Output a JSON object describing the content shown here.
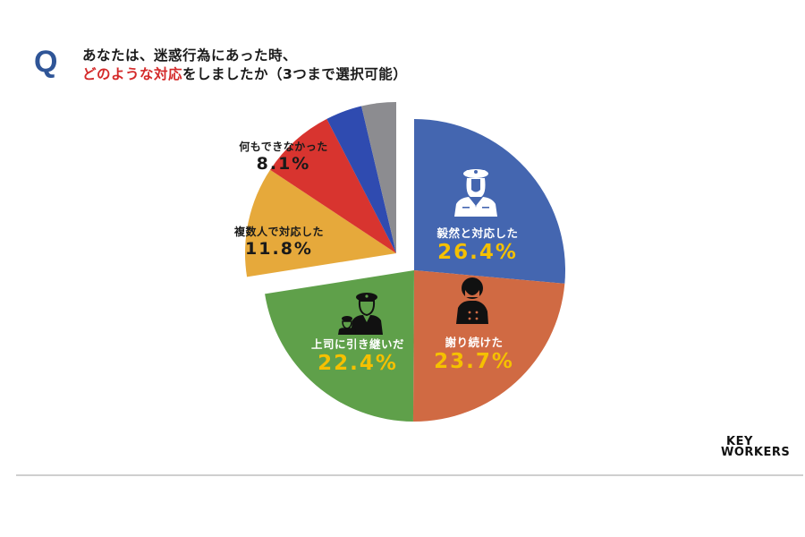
{
  "question": {
    "mark": "Q",
    "line1": "あなたは、迷惑行為にあった時、",
    "line2_highlight": "どのような対応",
    "line2_rest": "をしましたか（3つまで選択可能）"
  },
  "colors": {
    "q_mark": "#2f5597",
    "highlight": "#d42a2a",
    "pct_yellow": "#f5c000"
  },
  "chart_data": {
    "type": "pie",
    "title": "あなたは、迷惑行為にあった時、どのような対応をしましたか（3つまで選択可能）",
    "legend_position": "none (inline labels)",
    "categories": [
      "毅然と対応した",
      "謝り続けた",
      "上司に引き継いだ",
      "複数人で対応した",
      "何もできなかった",
      "(unlabeled blue)",
      "(unlabeled gray)"
    ],
    "values": [
      26.4,
      23.7,
      22.4,
      11.8,
      8.1,
      3.9,
      3.7
    ],
    "colors": [
      "#4466b0",
      "#d06a43",
      "#5fa04a",
      "#e6a93b",
      "#d8342f",
      "#2f4bb0",
      "#8c8c90"
    ],
    "exploded": [
      "複数人で対応した",
      "何もできなかった",
      "(unlabeled blue)",
      "(unlabeled gray)"
    ],
    "labels": [
      {
        "name": "毅然と対応した",
        "pct": "26.4%",
        "icon": "female-officer-icon"
      },
      {
        "name": "謝り続けた",
        "pct": "23.7%",
        "icon": "apologizing-person-icon"
      },
      {
        "name": "上司に引き継いだ",
        "pct": "22.4%",
        "icon": "supervisor-handover-icon"
      },
      {
        "name": "複数人で対応した",
        "pct": "11.8%"
      },
      {
        "name": "何もできなかった",
        "pct": "8.1%"
      }
    ]
  },
  "logo": {
    "line1": "KEY",
    "line2": "WORKERS"
  }
}
